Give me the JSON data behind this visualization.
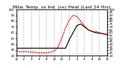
{
  "title": "Milw. Temp. vs Ind. (vs) Heat (Last 24 Hrs)",
  "hours": [
    0,
    1,
    2,
    3,
    4,
    5,
    6,
    7,
    8,
    9,
    10,
    11,
    12,
    13,
    14,
    15,
    16,
    17,
    18,
    19,
    20,
    21,
    22,
    23,
    24
  ],
  "outdoor_temp": [
    33,
    33,
    33,
    33,
    33,
    33,
    33,
    33,
    33,
    33,
    33,
    33,
    33,
    33,
    48,
    60,
    72,
    75,
    70,
    65,
    62,
    60,
    59,
    58,
    57
  ],
  "heat_index": [
    28,
    27,
    27,
    27,
    26,
    26,
    25,
    25,
    25,
    26,
    28,
    35,
    50,
    68,
    82,
    90,
    88,
    80,
    72,
    65,
    62,
    62,
    60,
    58,
    56
  ],
  "outdoor_color": "#000000",
  "heat_color": "#ff0000",
  "bg_color": "#ffffff",
  "grid_color": "#888888",
  "ylim_min": 20,
  "ylim_max": 100,
  "ytick_interval_left": 10,
  "ytick_interval_right": 5,
  "title_fontsize": 4.2,
  "tick_fontsize": 2.8,
  "linewidth_black": 0.8,
  "linewidth_red": 0.9,
  "x_tick_step": 2
}
